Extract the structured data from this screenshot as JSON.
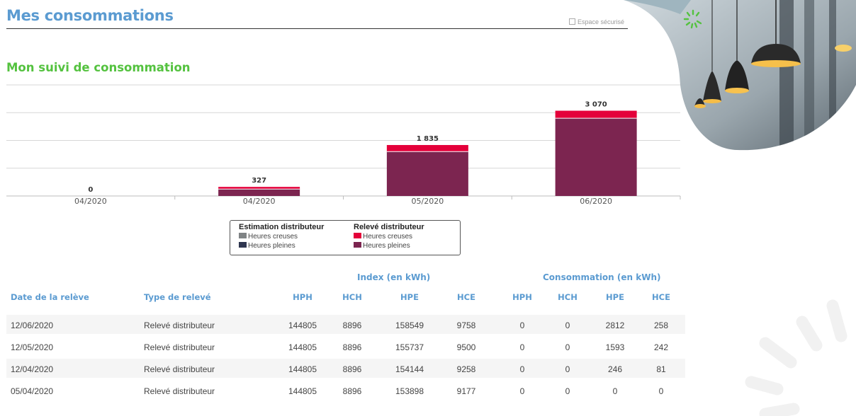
{
  "header": {
    "title": "Mes consommations",
    "secure_label": "Espace sécurisé"
  },
  "section": {
    "title": "Mon suivi de consommation"
  },
  "chart_data": {
    "type": "bar",
    "stacked": true,
    "categories": [
      "04/2020",
      "04/2020",
      "05/2020",
      "06/2020"
    ],
    "totals_labels": [
      "0",
      "327",
      "1 835",
      "3 070"
    ],
    "series": [
      {
        "name": "Relevé distributeur - Heures pleines",
        "values": [
          0,
          250,
          1600,
          2800
        ],
        "color": "#7c2550"
      },
      {
        "name": "Relevé distributeur - Heures creuses",
        "values": [
          0,
          77,
          235,
          270
        ],
        "color": "#e4003a"
      }
    ],
    "ylim": [
      0,
      4000
    ],
    "grid": true
  },
  "legend": {
    "estimation": {
      "title": "Estimation distributeur",
      "items": [
        {
          "label": "Heures creuses",
          "color": "#7f8385"
        },
        {
          "label": "Heures pleines",
          "color": "#2f3650"
        }
      ]
    },
    "releve": {
      "title": "Relevé distributeur",
      "items": [
        {
          "label": "Heures creuses",
          "color": "#e4003a"
        },
        {
          "label": "Heures pleines",
          "color": "#7c2550"
        }
      ]
    }
  },
  "table": {
    "group_index": "Index (en kWh)",
    "group_conso": "Consommation (en kWh)",
    "headers": [
      "Date de la relève",
      "Type de relevé",
      "HPH",
      "HCH",
      "HPE",
      "HCE",
      "HPH",
      "HCH",
      "HPE",
      "HCE"
    ],
    "rows": [
      [
        "12/06/2020",
        "Relevé distributeur",
        "144805",
        "8896",
        "158549",
        "9758",
        "0",
        "0",
        "2812",
        "258"
      ],
      [
        "12/05/2020",
        "Relevé distributeur",
        "144805",
        "8896",
        "155737",
        "9500",
        "0",
        "0",
        "1593",
        "242"
      ],
      [
        "12/04/2020",
        "Relevé distributeur",
        "144805",
        "8896",
        "154144",
        "9258",
        "0",
        "0",
        "246",
        "81"
      ],
      [
        "05/04/2020",
        "Relevé distributeur",
        "144805",
        "8896",
        "153898",
        "9177",
        "0",
        "0",
        "0",
        "0"
      ]
    ]
  },
  "colors": {
    "brand_blue": "#5b9bd1",
    "brand_green": "#54c23f"
  }
}
